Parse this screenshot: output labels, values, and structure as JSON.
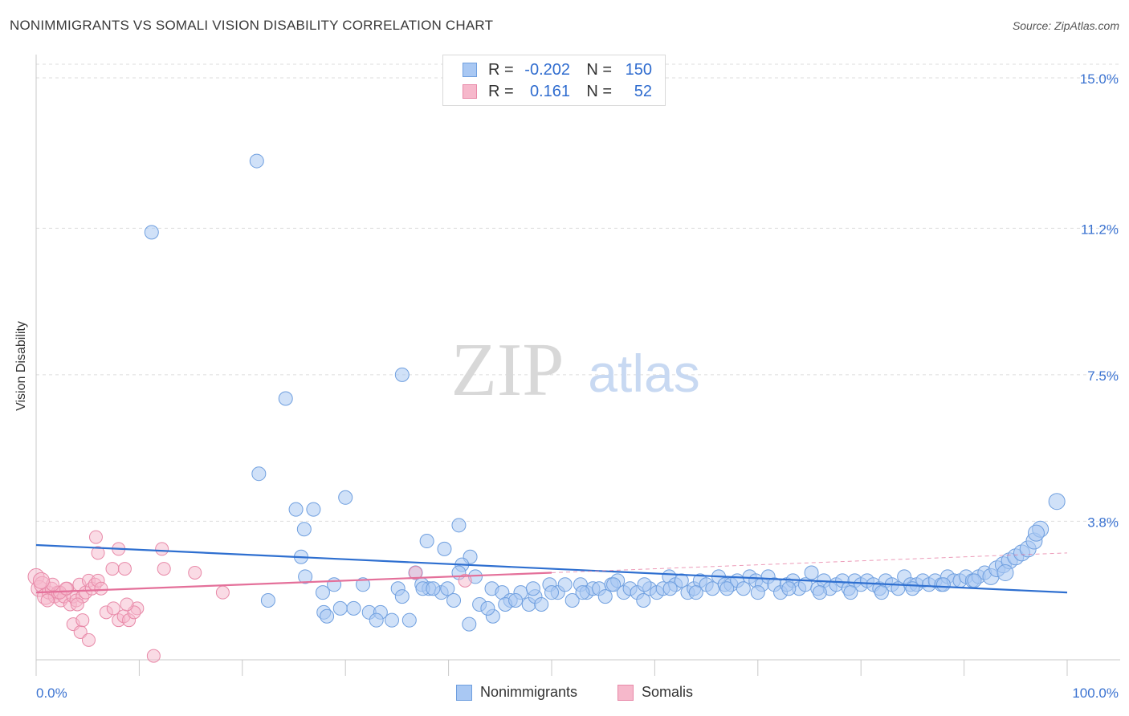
{
  "header": {
    "title": "NONIMMIGRANTS VS SOMALI VISION DISABILITY CORRELATION CHART",
    "source": "Source: ZipAtlas.com"
  },
  "watermark": {
    "zip": "ZIP",
    "atlas": "atlas"
  },
  "legend": {
    "rows": [
      {
        "r_label": "R =",
        "r_value": "-0.202",
        "n_label": "N =",
        "n_value": "150"
      },
      {
        "r_label": "R =",
        "r_value": "0.161",
        "n_label": "N =",
        "n_value": "52"
      }
    ]
  },
  "bottom_legend": {
    "items": [
      "Nonimmigrants",
      "Somalis"
    ]
  },
  "colors": {
    "blue_fill": "#a9c8f3",
    "blue_stroke": "#6f9fdf",
    "blue_line": "#2e6fd0",
    "pink_fill": "#f6b8cb",
    "pink_stroke": "#e889a8",
    "pink_line": "#e4709a",
    "axis_text": "#3b73d1",
    "grid": "#dddddd"
  },
  "chart_data": {
    "type": "scatter",
    "title": "NONIMMIGRANTS VS SOMALI VISION DISABILITY CORRELATION CHART",
    "xlabel": "",
    "ylabel": "Vision Disability",
    "xlim": [
      0,
      100
    ],
    "ylim": [
      0,
      15.5
    ],
    "x_tick_labels": [
      "0.0%",
      "100.0%"
    ],
    "y_ticks": [
      3.8,
      7.5,
      11.2,
      15.0
    ],
    "y_tick_labels": [
      "3.8%",
      "7.5%",
      "11.2%",
      "15.0%"
    ],
    "grid": true,
    "legend_position": "top-center",
    "series": [
      {
        "name": "Nonimmigrants",
        "r": -0.202,
        "n": 150,
        "trend": {
          "x": [
            0,
            100
          ],
          "y": [
            3.2,
            2.0
          ]
        },
        "points": [
          [
            21.4,
            12.9
          ],
          [
            11.2,
            11.1
          ],
          [
            35.5,
            7.5
          ],
          [
            24.2,
            6.9
          ],
          [
            21.6,
            5.0
          ],
          [
            30.0,
            4.4
          ],
          [
            25.2,
            4.1
          ],
          [
            26.9,
            4.1
          ],
          [
            26,
            3.6
          ],
          [
            41.0,
            3.7
          ],
          [
            37.9,
            3.3
          ],
          [
            39.6,
            3.1
          ],
          [
            25.7,
            2.9
          ],
          [
            42.1,
            2.9
          ],
          [
            41.3,
            2.7
          ],
          [
            36.8,
            2.5
          ],
          [
            26.1,
            2.4
          ],
          [
            27.8,
            2.0
          ],
          [
            28.9,
            2.2
          ],
          [
            31.7,
            2.2
          ],
          [
            35.1,
            2.1
          ],
          [
            35.5,
            1.9
          ],
          [
            37.4,
            2.2
          ],
          [
            38.1,
            2.1
          ],
          [
            39.3,
            2.0
          ],
          [
            39.9,
            2.1
          ],
          [
            41.0,
            2.5
          ],
          [
            42.6,
            2.4
          ],
          [
            44.2,
            2.1
          ],
          [
            45.2,
            2.0
          ],
          [
            46,
            1.8
          ],
          [
            47.0,
            2.0
          ],
          [
            47.8,
            1.7
          ],
          [
            48.4,
            1.9
          ],
          [
            49.0,
            1.7
          ],
          [
            49.8,
            2.2
          ],
          [
            50.6,
            2.0
          ],
          [
            51.3,
            2.2
          ],
          [
            52.0,
            1.8
          ],
          [
            52.8,
            2.2
          ],
          [
            53.4,
            2.0
          ],
          [
            54.0,
            2.1
          ],
          [
            54.6,
            2.1
          ],
          [
            55.2,
            1.9
          ],
          [
            55.8,
            2.2
          ],
          [
            56.4,
            2.3
          ],
          [
            57.0,
            2.0
          ],
          [
            57.6,
            2.1
          ],
          [
            58.3,
            2.0
          ],
          [
            58.9,
            1.8
          ],
          [
            59.5,
            2.1
          ],
          [
            60.2,
            2.0
          ],
          [
            60.8,
            2.1
          ],
          [
            61.4,
            2.4
          ],
          [
            62.0,
            2.2
          ],
          [
            62.6,
            2.3
          ],
          [
            63.2,
            2.0
          ],
          [
            63.8,
            2.1
          ],
          [
            64.4,
            2.3
          ],
          [
            65.0,
            2.2
          ],
          [
            65.6,
            2.1
          ],
          [
            66.2,
            2.4
          ],
          [
            66.8,
            2.2
          ],
          [
            67.4,
            2.2
          ],
          [
            68.0,
            2.3
          ],
          [
            68.6,
            2.1
          ],
          [
            69.2,
            2.4
          ],
          [
            69.8,
            2.3
          ],
          [
            70.4,
            2.2
          ],
          [
            71.0,
            2.4
          ],
          [
            71.6,
            2.2
          ],
          [
            72.2,
            2.0
          ],
          [
            72.8,
            2.2
          ],
          [
            73.4,
            2.3
          ],
          [
            74.0,
            2.1
          ],
          [
            74.6,
            2.2
          ],
          [
            75.2,
            2.5
          ],
          [
            75.8,
            2.1
          ],
          [
            76.4,
            2.3
          ],
          [
            77.0,
            2.1
          ],
          [
            77.6,
            2.2
          ],
          [
            78.2,
            2.3
          ],
          [
            78.8,
            2.1
          ],
          [
            79.4,
            2.3
          ],
          [
            80.0,
            2.2
          ],
          [
            80.6,
            2.3
          ],
          [
            81.2,
            2.2
          ],
          [
            81.8,
            2.1
          ],
          [
            82.4,
            2.3
          ],
          [
            83.0,
            2.2
          ],
          [
            83.6,
            2.1
          ],
          [
            84.2,
            2.4
          ],
          [
            84.8,
            2.2
          ],
          [
            85.4,
            2.2
          ],
          [
            86.0,
            2.3
          ],
          [
            86.6,
            2.2
          ],
          [
            87.2,
            2.3
          ],
          [
            87.8,
            2.2
          ],
          [
            88.4,
            2.4
          ],
          [
            89.0,
            2.3
          ],
          [
            89.6,
            2.3
          ],
          [
            90.2,
            2.4
          ],
          [
            90.8,
            2.3
          ],
          [
            91.4,
            2.4
          ],
          [
            92.0,
            2.5
          ],
          [
            92.6,
            2.4
          ],
          [
            93.2,
            2.6
          ],
          [
            93.8,
            2.7
          ],
          [
            94.4,
            2.8
          ],
          [
            95.0,
            2.9
          ],
          [
            95.6,
            3.0
          ],
          [
            96.2,
            3.1
          ],
          [
            96.8,
            3.3
          ],
          [
            97.4,
            3.6
          ],
          [
            99.0,
            4.3
          ],
          [
            97.0,
            3.5
          ],
          [
            22.5,
            1.8
          ],
          [
            29.5,
            1.6
          ],
          [
            30.8,
            1.6
          ],
          [
            34.5,
            1.3
          ],
          [
            32.3,
            1.5
          ],
          [
            33.4,
            1.5
          ],
          [
            36.2,
            1.3
          ],
          [
            27.9,
            1.5
          ],
          [
            42.0,
            1.2
          ],
          [
            43.0,
            1.7
          ],
          [
            44.3,
            1.4
          ],
          [
            45.5,
            1.7
          ],
          [
            37.5,
            2.1
          ],
          [
            38.5,
            2.1
          ],
          [
            40.5,
            1.8
          ],
          [
            28.2,
            1.4
          ],
          [
            33.0,
            1.3
          ],
          [
            43.8,
            1.6
          ],
          [
            46.5,
            1.8
          ],
          [
            48.2,
            2.1
          ],
          [
            50.0,
            2.0
          ],
          [
            53.0,
            2.0
          ],
          [
            56.0,
            2.2
          ],
          [
            59.0,
            2.2
          ],
          [
            61.5,
            2.1
          ],
          [
            64.0,
            2.0
          ],
          [
            67.0,
            2.1
          ],
          [
            70.0,
            2.0
          ],
          [
            73.0,
            2.1
          ],
          [
            76.0,
            2.0
          ],
          [
            79.0,
            2.0
          ],
          [
            82.0,
            2.0
          ],
          [
            85.0,
            2.1
          ],
          [
            88.0,
            2.2
          ],
          [
            91.0,
            2.3
          ],
          [
            94.0,
            2.5
          ]
        ]
      },
      {
        "name": "Somalis",
        "r": 0.161,
        "n": 52,
        "trend": {
          "x": [
            0,
            50
          ],
          "y": [
            2.0,
            2.5
          ]
        },
        "points": [
          [
            0.0,
            2.4
          ],
          [
            0.3,
            2.1
          ],
          [
            0.6,
            2.2
          ],
          [
            0.9,
            1.9
          ],
          [
            1.2,
            2.0
          ],
          [
            1.5,
            2.1
          ],
          [
            1.8,
            1.9
          ],
          [
            2.1,
            2.0
          ],
          [
            2.4,
            1.8
          ],
          [
            2.7,
            1.9
          ],
          [
            3.0,
            2.1
          ],
          [
            3.3,
            1.7
          ],
          [
            3.6,
            1.9
          ],
          [
            3.9,
            1.8
          ],
          [
            4.2,
            2.2
          ],
          [
            4.5,
            1.9
          ],
          [
            4.8,
            2.0
          ],
          [
            5.1,
            2.3
          ],
          [
            5.4,
            2.1
          ],
          [
            5.7,
            2.2
          ],
          [
            6.0,
            2.3
          ],
          [
            6.3,
            2.1
          ],
          [
            5.8,
            3.4
          ],
          [
            6.0,
            3.0
          ],
          [
            8.0,
            3.1
          ],
          [
            12.2,
            3.1
          ],
          [
            7.4,
            2.6
          ],
          [
            8.6,
            2.6
          ],
          [
            12.4,
            2.6
          ],
          [
            15.4,
            2.5
          ],
          [
            6.8,
            1.5
          ],
          [
            7.5,
            1.6
          ],
          [
            8.0,
            1.3
          ],
          [
            8.5,
            1.4
          ],
          [
            9.0,
            1.3
          ],
          [
            9.8,
            1.6
          ],
          [
            3.6,
            1.2
          ],
          [
            4.3,
            1.0
          ],
          [
            5.1,
            0.8
          ],
          [
            4.5,
            1.3
          ],
          [
            9.5,
            1.5
          ],
          [
            11.4,
            0.4
          ],
          [
            18.1,
            2.0
          ],
          [
            2.3,
            2.0
          ],
          [
            1.6,
            2.2
          ],
          [
            1.1,
            1.8
          ],
          [
            2.9,
            2.1
          ],
          [
            4.0,
            1.7
          ],
          [
            0.5,
            2.3
          ],
          [
            8.8,
            1.7
          ],
          [
            41.6,
            2.3
          ],
          [
            36.8,
            2.5
          ]
        ]
      }
    ]
  }
}
